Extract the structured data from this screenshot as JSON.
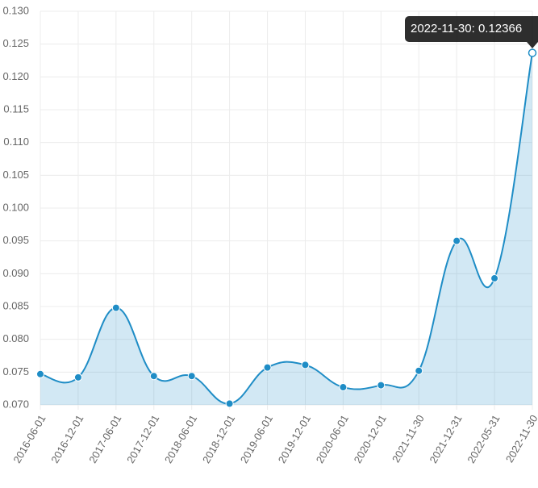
{
  "chart_data": {
    "type": "line",
    "categories": [
      "2016-06-01",
      "2016-12-01",
      "2017-06-01",
      "2017-12-01",
      "2018-06-01",
      "2018-12-01",
      "2019-06-01",
      "2019-12-01",
      "2020-06-01",
      "2020-12-01",
      "2021-11-30",
      "2021-12-31",
      "2022-05-31",
      "2022-11-30"
    ],
    "series": [
      {
        "color": "#1f8dc6",
        "values": [
          0.0747,
          0.0742,
          0.0848,
          0.0744,
          0.0744,
          0.0702,
          0.0757,
          0.0761,
          0.0727,
          0.073,
          0.0752,
          0.095,
          0.0893,
          0.12366
        ]
      }
    ],
    "ylim": [
      0.07,
      0.13
    ],
    "yticks": [
      {
        "value": 0.07,
        "label": "0.070"
      },
      {
        "value": 0.075,
        "label": "0.075"
      },
      {
        "value": 0.08,
        "label": "0.080"
      },
      {
        "value": 0.085,
        "label": "0.085"
      },
      {
        "value": 0.09,
        "label": "0.090"
      },
      {
        "value": 0.095,
        "label": "0.095"
      },
      {
        "value": 0.1,
        "label": "0.100"
      },
      {
        "value": 0.105,
        "label": "0.105"
      },
      {
        "value": 0.11,
        "label": "0.110"
      },
      {
        "value": 0.115,
        "label": "0.115"
      },
      {
        "value": 0.12,
        "label": "0.120"
      },
      {
        "value": 0.125,
        "label": "0.125"
      },
      {
        "value": 0.13,
        "label": "0.130"
      }
    ],
    "grid": true,
    "tooltip": "2022-11-30: 0.12366"
  }
}
